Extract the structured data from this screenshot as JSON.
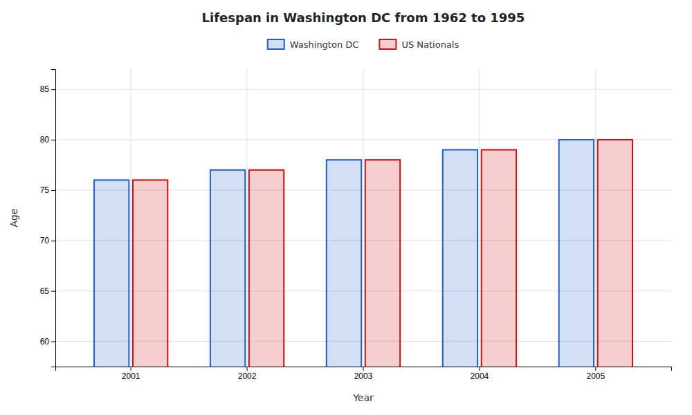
{
  "chart_data": {
    "type": "bar",
    "title": "Lifespan in Washington DC from 1962 to 1995",
    "x_label": "Year",
    "y_label": "Age",
    "categories": [
      "2001",
      "2002",
      "2003",
      "2004",
      "2005"
    ],
    "series": [
      {
        "name": "Washington DC",
        "color": "#1e5fcc",
        "values": [
          76,
          77,
          78,
          79,
          80
        ]
      },
      {
        "name": "US Nationals",
        "color": "#cc1111",
        "values": [
          76,
          77,
          78,
          79,
          80
        ]
      }
    ],
    "ylim": [
      57.5,
      87
    ],
    "yticks": [
      60,
      65,
      70,
      75,
      80,
      85
    ],
    "grid": true,
    "legend": "top"
  }
}
